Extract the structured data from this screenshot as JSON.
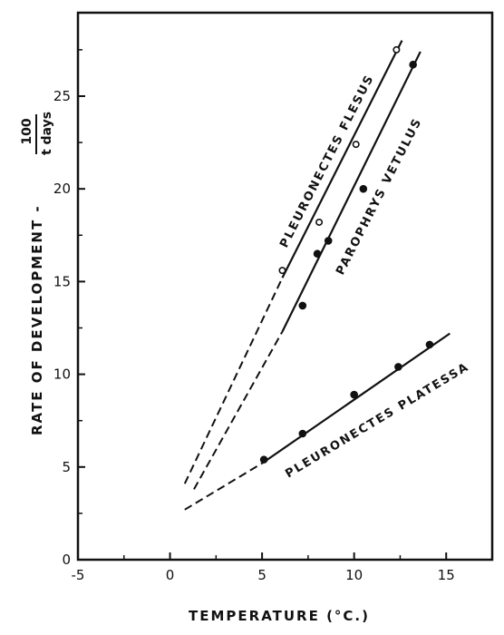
{
  "chart_data": {
    "type": "scatter",
    "xlabel": "TEMPERATURE (°C.)",
    "ylabel": "RATE OF DEVELOPMENT -",
    "ylabel_fraction_numerator": "100",
    "ylabel_fraction_denominator": "t days",
    "xlim": [
      -5,
      17.5
    ],
    "ylim": [
      0,
      29.5
    ],
    "xticks": [
      "-5",
      "0",
      "5",
      "10",
      "15"
    ],
    "yticks": [
      "0",
      "5",
      "10",
      "15",
      "20",
      "25"
    ],
    "xtick_values": [
      -5,
      0,
      5,
      10,
      15
    ],
    "ytick_values": [
      0,
      5,
      10,
      15,
      20,
      25
    ],
    "series": [
      {
        "name": "PLEURONECTES FLESUS",
        "marker": "open-circle",
        "points": [
          [
            6.1,
            15.6
          ],
          [
            8.1,
            18.2
          ],
          [
            10.1,
            22.4
          ],
          [
            12.3,
            27.5
          ]
        ],
        "fit_solid": [
          [
            6.1,
            15.2
          ],
          [
            12.6,
            28.0
          ]
        ],
        "fit_dashed": [
          [
            0.8,
            4.1
          ],
          [
            6.1,
            15.2
          ]
        ]
      },
      {
        "name": "PAROPHRYS VETULUS",
        "marker": "filled-circle",
        "points": [
          [
            7.2,
            13.7
          ],
          [
            8.0,
            16.5
          ],
          [
            8.6,
            17.2
          ],
          [
            10.5,
            20.0
          ],
          [
            13.2,
            26.7
          ]
        ],
        "fit_solid": [
          [
            6.1,
            12.3
          ],
          [
            13.6,
            27.4
          ]
        ],
        "fit_dashed": [
          [
            1.3,
            3.8
          ],
          [
            6.1,
            12.3
          ]
        ]
      },
      {
        "name": "PLEURONECTES PLATESSA",
        "marker": "filled-circle",
        "points": [
          [
            5.1,
            5.4
          ],
          [
            7.2,
            6.8
          ],
          [
            10.0,
            8.9
          ],
          [
            12.4,
            10.4
          ],
          [
            14.1,
            11.6
          ]
        ],
        "fit_solid": [
          [
            5.0,
            5.2
          ],
          [
            15.2,
            12.2
          ]
        ],
        "fit_dashed": [
          [
            0.8,
            2.7
          ],
          [
            5.0,
            5.2
          ]
        ]
      }
    ]
  }
}
